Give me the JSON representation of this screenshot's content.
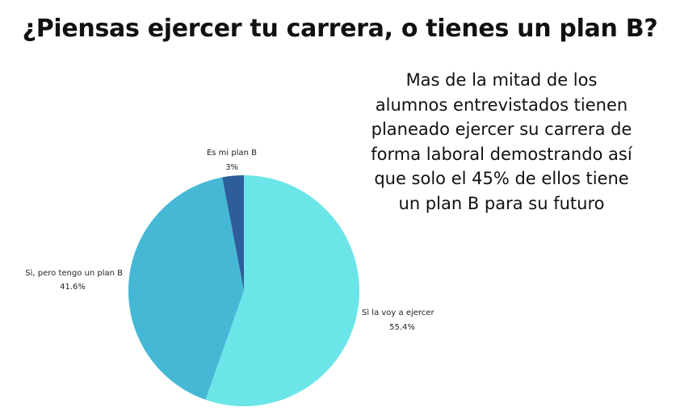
{
  "chart_data": {
    "type": "pie",
    "title": "¿Piensas ejercer tu carrera, o tienes un plan B?",
    "slices": [
      {
        "label": "Sì la voy a ejercer",
        "value": 55.4,
        "value_label": "55.4%",
        "color": "#6ce5e9"
      },
      {
        "label": "Sì, pero tengo un plan B",
        "value": 41.6,
        "value_label": "41.6%",
        "color": "#45b8d6"
      },
      {
        "label": "Es mi plan B",
        "value": 3,
        "value_label": "3%",
        "color": "#2e5e9a"
      }
    ],
    "start_angle": "12 o'clock",
    "direction": "clockwise",
    "annotation": [
      "Mas de la mitad de los",
      "alumnos entrevistados tienen",
      "planeado ejercer su carrera de",
      "forma laboral demostrando así",
      "que solo el 45% de ellos tiene",
      "un plan B para su futuro"
    ]
  }
}
